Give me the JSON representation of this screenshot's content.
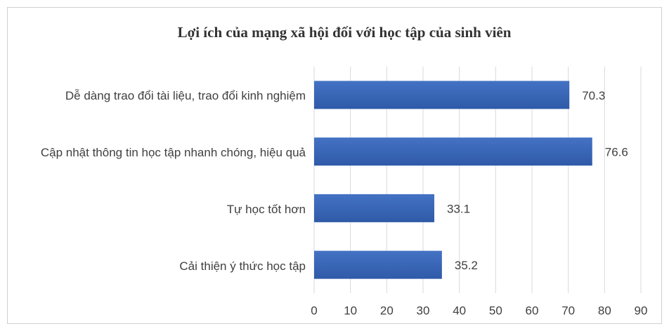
{
  "chart_data": {
    "type": "barh",
    "title": "Lợi ích của mạng xã hội đối với học tập của sinh viên",
    "categories": [
      "Dễ dàng trao đổi tài liệu, trao đổi kinh nghiệm",
      "Cập nhật thông tin học tập nhanh chóng, hiệu quả",
      "Tự học tốt hơn",
      "Cải thiện ý thức học tập"
    ],
    "values": [
      70.3,
      76.6,
      33.1,
      35.2
    ],
    "color": "#4472c4",
    "xlim": [
      0,
      90
    ],
    "xticks": [
      0,
      10,
      20,
      30,
      40,
      50,
      60,
      70,
      80,
      90
    ],
    "grid": true
  }
}
